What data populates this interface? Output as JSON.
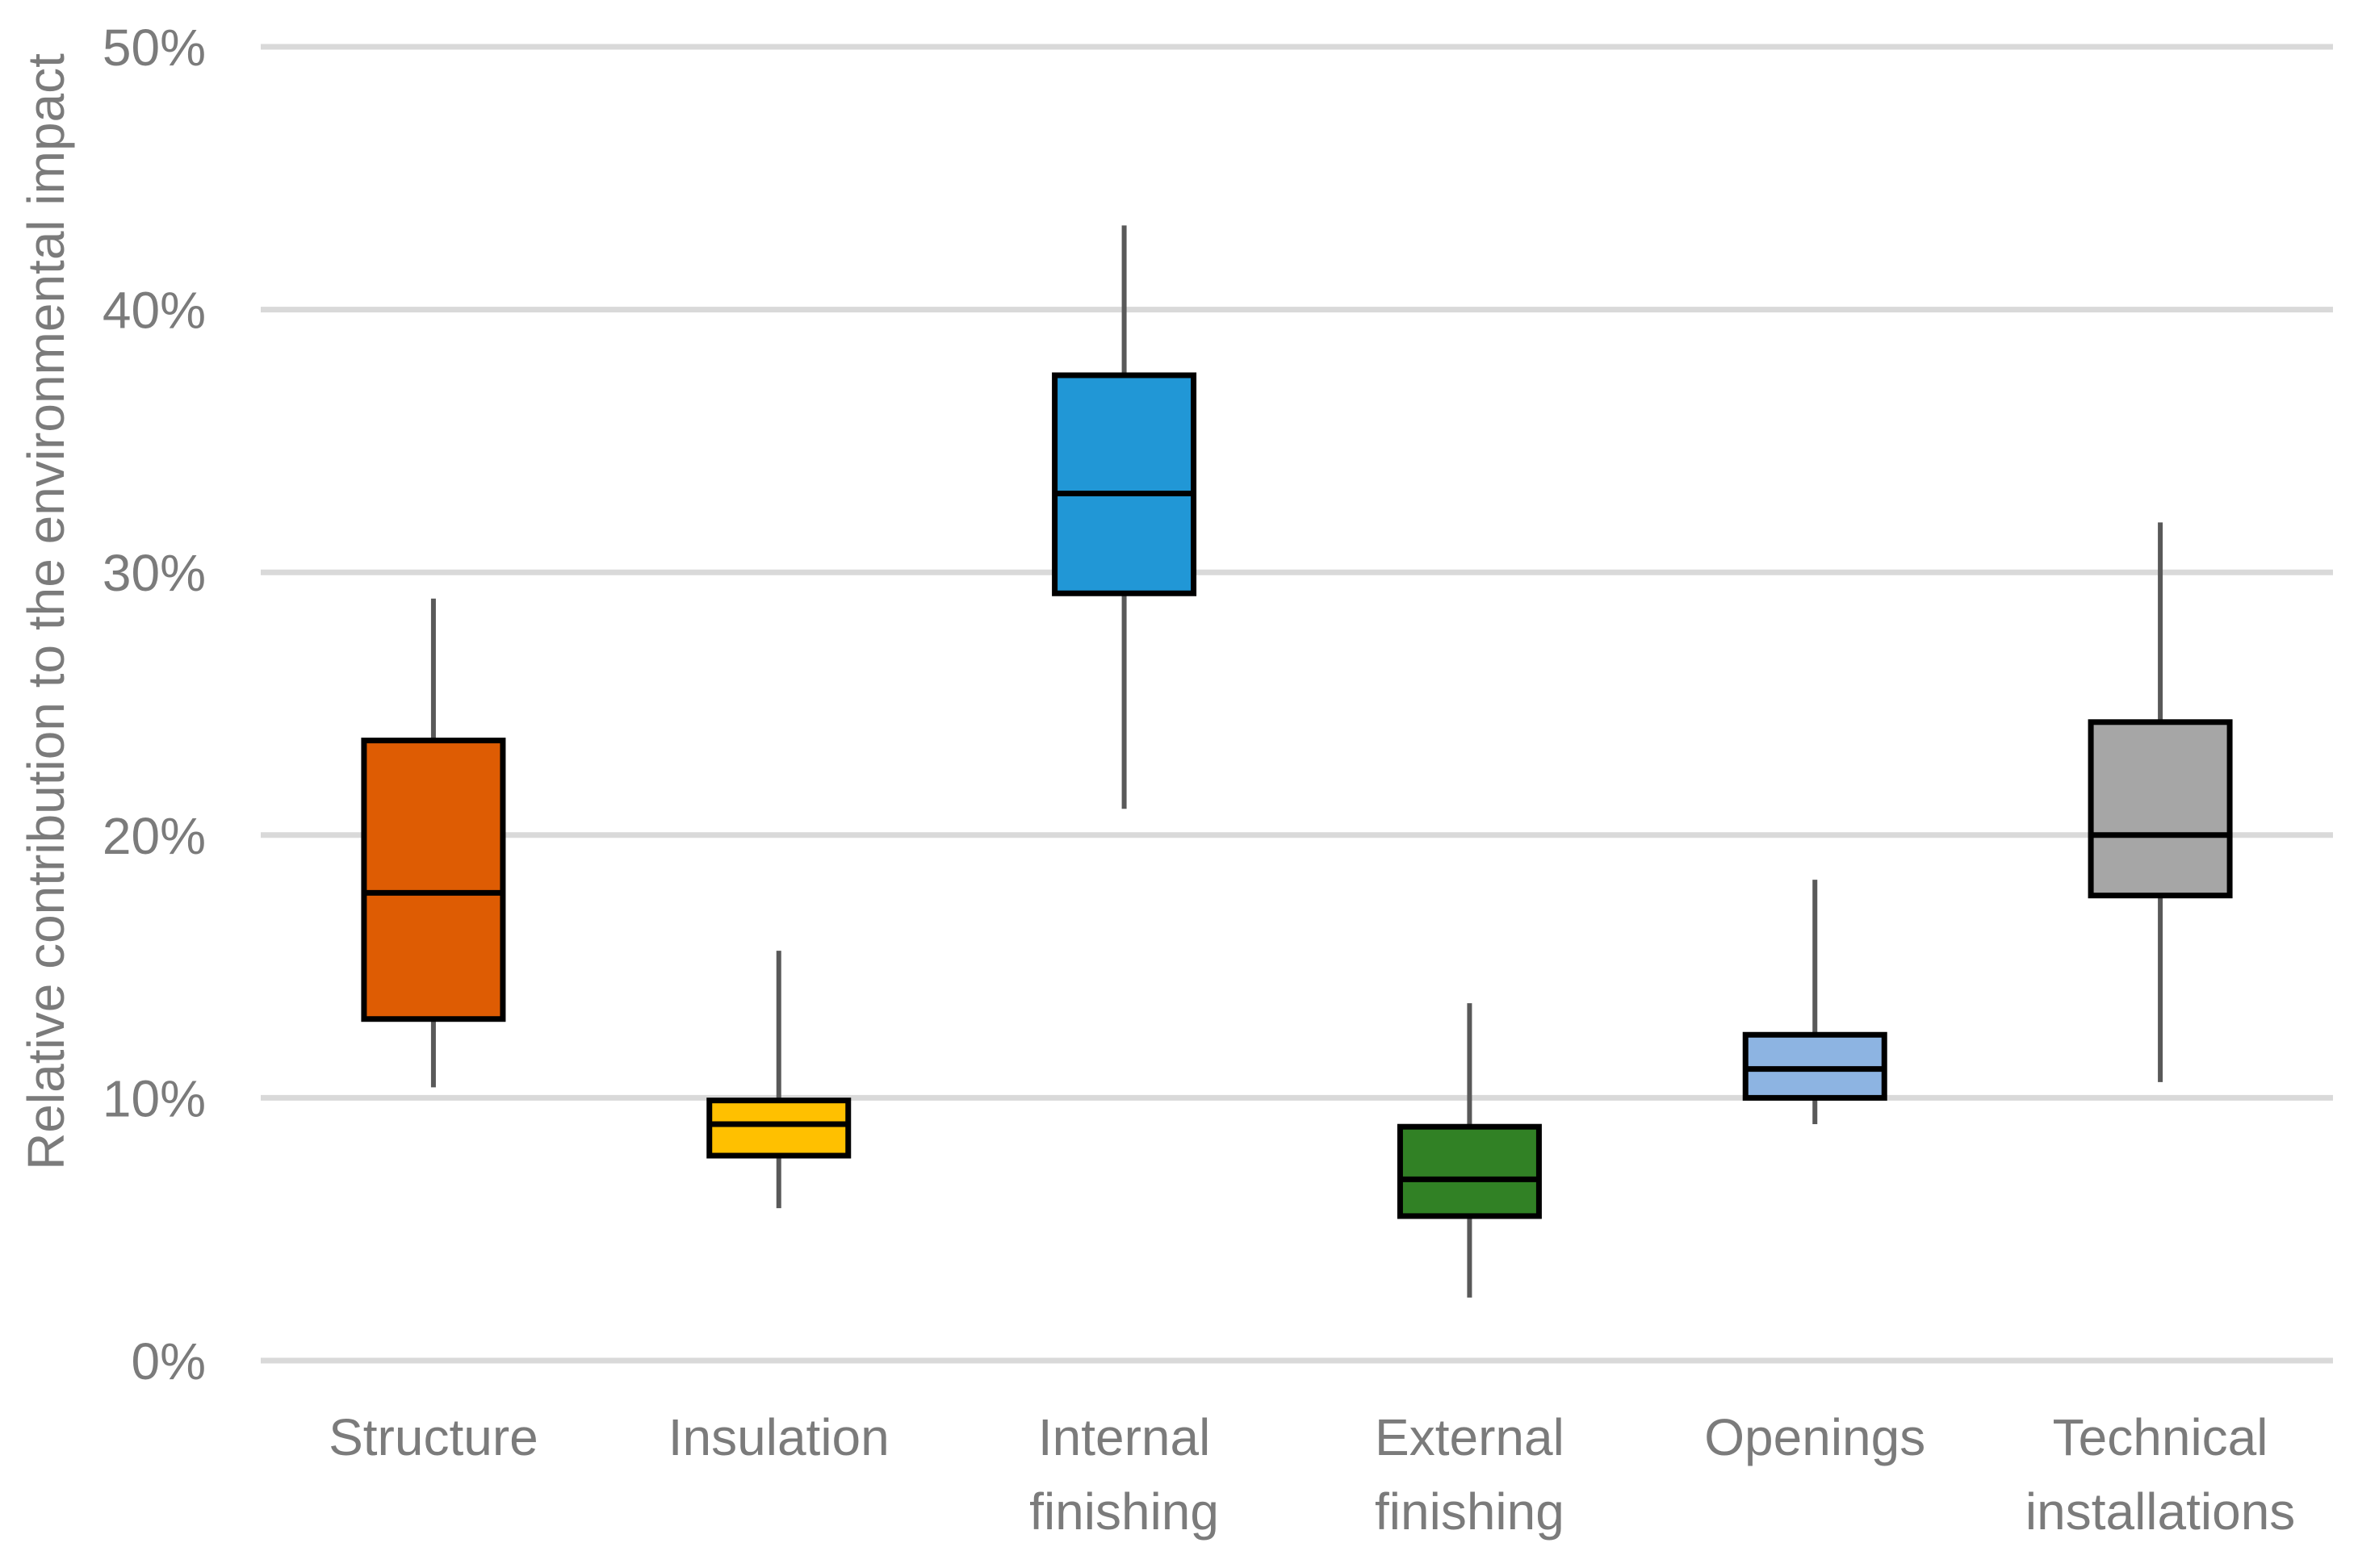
{
  "chart_data": {
    "type": "boxplot",
    "title": "",
    "xlabel": "",
    "ylabel": "Relative contribution to the environmental impact",
    "ylim": [
      0,
      50
    ],
    "ytick_step": 10,
    "yticks": [
      0,
      10,
      20,
      30,
      40,
      50
    ],
    "ytick_labels": [
      "0%",
      "10%",
      "20%",
      "30%",
      "40%",
      "50%"
    ],
    "grid": true,
    "legend": "none",
    "categories": [
      "Structure",
      "Insulation",
      "Internal finishing",
      "External finishing",
      "Openings",
      "Technical installations"
    ],
    "category_label_lines": [
      [
        "Structure"
      ],
      [
        "Insulation"
      ],
      [
        "Internal",
        "finishing"
      ],
      [
        "External",
        "finishing"
      ],
      [
        "Openings"
      ],
      [
        "Technical",
        "installations"
      ]
    ],
    "series": [
      {
        "name": "Structure",
        "min": 10.4,
        "q1": 13.0,
        "median": 17.8,
        "q3": 23.6,
        "max": 29.0,
        "color": "#DE5C03"
      },
      {
        "name": "Insulation",
        "min": 5.8,
        "q1": 7.8,
        "median": 9.0,
        "q3": 9.9,
        "max": 15.6,
        "color": "#FFC000"
      },
      {
        "name": "Internal finishing",
        "min": 21.0,
        "q1": 29.2,
        "median": 33.0,
        "q3": 37.5,
        "max": 43.2,
        "color": "#2197D6"
      },
      {
        "name": "External finishing",
        "min": 2.4,
        "q1": 5.5,
        "median": 6.9,
        "q3": 8.9,
        "max": 13.6,
        "color": "#318125"
      },
      {
        "name": "Openings",
        "min": 9.0,
        "q1": 10.0,
        "median": 11.1,
        "q3": 12.4,
        "max": 18.3,
        "color": "#8DB4E2"
      },
      {
        "name": "Technical installations",
        "min": 10.6,
        "q1": 17.7,
        "median": 20.0,
        "q3": 24.3,
        "max": 31.9,
        "color": "#A6A6A6"
      }
    ],
    "palette": {
      "gridline": "#D9D9D9",
      "whisker": "#595959",
      "box_border": "#000000",
      "median_line": "#000000",
      "axis_text": "#7B7B7B",
      "background": "#FFFFFF"
    }
  }
}
